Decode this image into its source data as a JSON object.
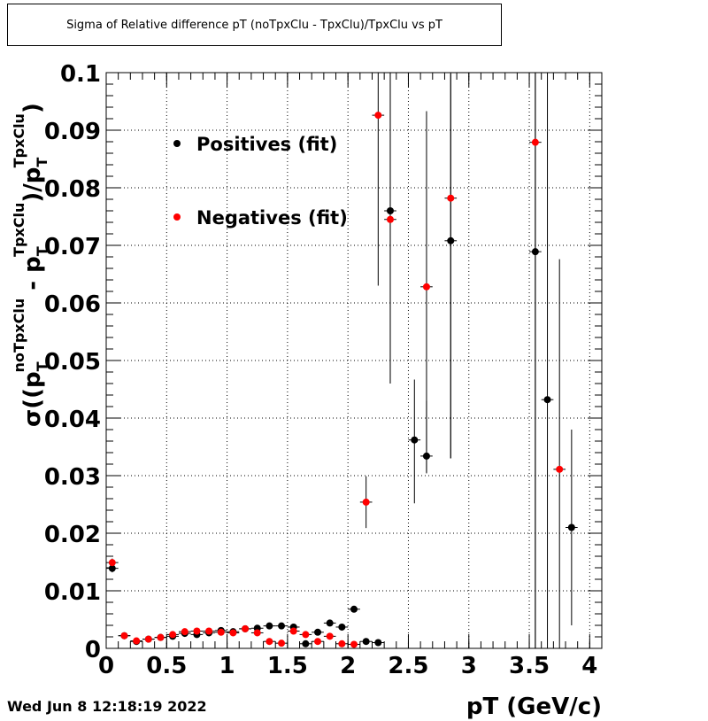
{
  "header": {
    "title": "Sigma of Relative difference pT (noTpxClu - TpxClu)/TpxClu vs pT"
  },
  "footer": {
    "datestamp": "Wed Jun  8 12:18:19 2022"
  },
  "colors": {
    "positives": "#000000",
    "negatives": "#ff0000",
    "grid": "#000000",
    "frame": "#000000",
    "background": "#ffffff"
  },
  "chart_data": {
    "type": "scatter",
    "title": "Sigma of Relative difference pT (noTpxClu - TpxClu)/TpxClu vs pT",
    "xlabel": "pT (GeV/c)",
    "ylabel_parts": {
      "main": "σ((p",
      "sup1": "noTpxClu",
      "mid": " - p",
      "sup2": "TpxClu",
      "end": ")/p",
      "sup3": "TpxClu",
      "close": ")",
      "sub": "T"
    },
    "xlim": [
      0,
      4.1
    ],
    "ylim": [
      0,
      0.1
    ],
    "xticks": [
      0,
      0.5,
      1,
      1.5,
      2,
      2.5,
      3,
      3.5,
      4
    ],
    "xtick_labels": [
      "0",
      "0.5",
      "1",
      "1.5",
      "2",
      "2.5",
      "3",
      "3.5",
      "4"
    ],
    "yticks": [
      0,
      0.01,
      0.02,
      0.03,
      0.04,
      0.05,
      0.06,
      0.07,
      0.08,
      0.09,
      0.1
    ],
    "ytick_labels": [
      "0",
      "0.01",
      "0.02",
      "0.03",
      "0.04",
      "0.05",
      "0.06",
      "0.07",
      "0.08",
      "0.09",
      "0.1"
    ],
    "grid": true,
    "legend_position": "top-left",
    "series": [
      {
        "name": "Positives (fit)",
        "color": "#000000",
        "x_halfwidth": 0.05,
        "points": [
          {
            "x": 0.05,
            "y": 0.0139,
            "err": 0.0007
          },
          {
            "x": 0.15,
            "y": 0.0022,
            "err": 0.0002
          },
          {
            "x": 0.25,
            "y": 0.0012,
            "err": 0.0002
          },
          {
            "x": 0.35,
            "y": 0.0016,
            "err": 0.0002
          },
          {
            "x": 0.45,
            "y": 0.0019,
            "err": 0.0002
          },
          {
            "x": 0.55,
            "y": 0.0021,
            "err": 0.0002
          },
          {
            "x": 0.65,
            "y": 0.0026,
            "err": 0.0002
          },
          {
            "x": 0.75,
            "y": 0.0024,
            "err": 0.0002
          },
          {
            "x": 0.85,
            "y": 0.0027,
            "err": 0.0002
          },
          {
            "x": 0.95,
            "y": 0.0031,
            "err": 0.0002
          },
          {
            "x": 1.05,
            "y": 0.0029,
            "err": 0.0002
          },
          {
            "x": 1.15,
            "y": 0.0034,
            "err": 0.0002
          },
          {
            "x": 1.25,
            "y": 0.0035,
            "err": 0.0002
          },
          {
            "x": 1.35,
            "y": 0.0039,
            "err": 0.0002
          },
          {
            "x": 1.45,
            "y": 0.0039,
            "err": 0.0002
          },
          {
            "x": 1.55,
            "y": 0.0037,
            "err": 0.0002
          },
          {
            "x": 1.65,
            "y": 0.0008,
            "err": 0.0002
          },
          {
            "x": 1.75,
            "y": 0.0028,
            "err": 0.0002
          },
          {
            "x": 1.85,
            "y": 0.0044,
            "err": 0.0003
          },
          {
            "x": 1.95,
            "y": 0.0037,
            "err": 0.0003
          },
          {
            "x": 2.05,
            "y": 0.0068,
            "err": 0.0003
          },
          {
            "x": 2.15,
            "y": 0.0012,
            "err": 0.0002
          },
          {
            "x": 2.25,
            "y": 0.001,
            "err": 0.0002
          },
          {
            "x": 2.35,
            "y": 0.076,
            "errlo": 0.03,
            "errhi": 0.024
          },
          {
            "x": 2.55,
            "y": 0.0362,
            "errlo": 0.011,
            "errhi": 0.0105
          },
          {
            "x": 2.65,
            "y": 0.0334,
            "errlo": 0.003,
            "errhi": 0.0096
          },
          {
            "x": 2.85,
            "y": 0.0708,
            "errlo": 0.0378,
            "errhi": 0.029
          },
          {
            "x": 3.55,
            "y": 0.0689,
            "errlo": 0.07,
            "errhi": 0.031
          },
          {
            "x": 3.65,
            "y": 0.0432,
            "errlo": 0.0432,
            "errhi": 0.0568
          },
          {
            "x": 3.85,
            "y": 0.021,
            "errlo": 0.017,
            "errhi": 0.017
          }
        ]
      },
      {
        "name": "Negatives (fit)",
        "color": "#ff0000",
        "x_halfwidth": 0.05,
        "points": [
          {
            "x": 0.05,
            "y": 0.0149,
            "err": 0.0007
          },
          {
            "x": 0.15,
            "y": 0.0022,
            "err": 0.0002
          },
          {
            "x": 0.25,
            "y": 0.0013,
            "err": 0.0002
          },
          {
            "x": 0.35,
            "y": 0.0016,
            "err": 0.0002
          },
          {
            "x": 0.45,
            "y": 0.0019,
            "err": 0.0002
          },
          {
            "x": 0.55,
            "y": 0.0024,
            "err": 0.0002
          },
          {
            "x": 0.65,
            "y": 0.0029,
            "err": 0.0002
          },
          {
            "x": 0.75,
            "y": 0.003,
            "err": 0.0002
          },
          {
            "x": 0.85,
            "y": 0.003,
            "err": 0.0002
          },
          {
            "x": 0.95,
            "y": 0.0028,
            "err": 0.0002
          },
          {
            "x": 1.05,
            "y": 0.0027,
            "err": 0.0002
          },
          {
            "x": 1.15,
            "y": 0.0034,
            "err": 0.0002
          },
          {
            "x": 1.25,
            "y": 0.0027,
            "err": 0.0002
          },
          {
            "x": 1.35,
            "y": 0.0012,
            "err": 0.0002
          },
          {
            "x": 1.45,
            "y": 0.0009,
            "err": 0.0002
          },
          {
            "x": 1.55,
            "y": 0.003,
            "err": 0.0002
          },
          {
            "x": 1.65,
            "y": 0.0024,
            "err": 0.0002
          },
          {
            "x": 1.75,
            "y": 0.0012,
            "err": 0.0002
          },
          {
            "x": 1.85,
            "y": 0.0021,
            "err": 0.0002
          },
          {
            "x": 1.95,
            "y": 0.0008,
            "err": 0.0002
          },
          {
            "x": 2.05,
            "y": 0.0007,
            "err": 0.0002
          },
          {
            "x": 2.15,
            "y": 0.0254,
            "errlo": 0.0045,
            "errhi": 0.0045
          },
          {
            "x": 2.25,
            "y": 0.0926,
            "errlo": 0.0296,
            "errhi": 0.0074
          },
          {
            "x": 2.35,
            "y": 0.0745,
            "errlo": 0.0285,
            "errhi": 0.0255
          },
          {
            "x": 2.65,
            "y": 0.0628,
            "errlo": 0.0322,
            "errhi": 0.0305
          },
          {
            "x": 2.85,
            "y": 0.0782,
            "errlo": 0.0452,
            "errhi": 0.0218
          },
          {
            "x": 3.55,
            "y": 0.0879,
            "errlo": 0.0879,
            "errhi": 0.0121
          },
          {
            "x": 3.75,
            "y": 0.0311,
            "errlo": 0.0311,
            "errhi": 0.0365
          }
        ]
      }
    ]
  }
}
